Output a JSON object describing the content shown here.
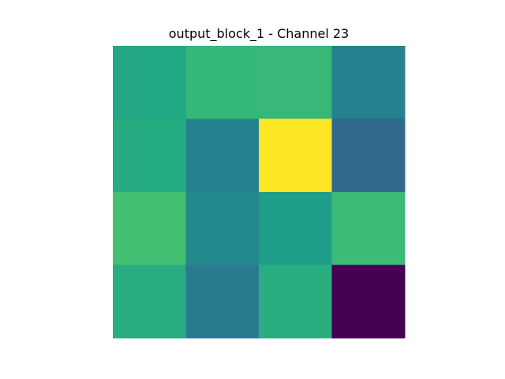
{
  "chart_data": {
    "type": "heatmap",
    "title": "output_block_1 - Channel 23",
    "xlabel": "",
    "ylabel": "",
    "colormap": "viridis",
    "axes_visible": false,
    "grid": false,
    "value_range": [
      0,
      1
    ],
    "rows": 4,
    "cols": 4,
    "values": [
      [
        0.58,
        0.67,
        0.68,
        0.4
      ],
      [
        0.6,
        0.4,
        1.0,
        0.33
      ],
      [
        0.72,
        0.47,
        0.53,
        0.7
      ],
      [
        0.61,
        0.39,
        0.6,
        0.0
      ]
    ],
    "cell_colors": [
      [
        "#22a785",
        "#35b779",
        "#37b878",
        "#26818e"
      ],
      [
        "#25ab82",
        "#26818e",
        "#fde725",
        "#31688e"
      ],
      [
        "#43bf71",
        "#23898e",
        "#1f9e89",
        "#3bbb75"
      ],
      [
        "#27ad81",
        "#2b7b8e",
        "#29af7f",
        "#440154"
      ]
    ]
  }
}
